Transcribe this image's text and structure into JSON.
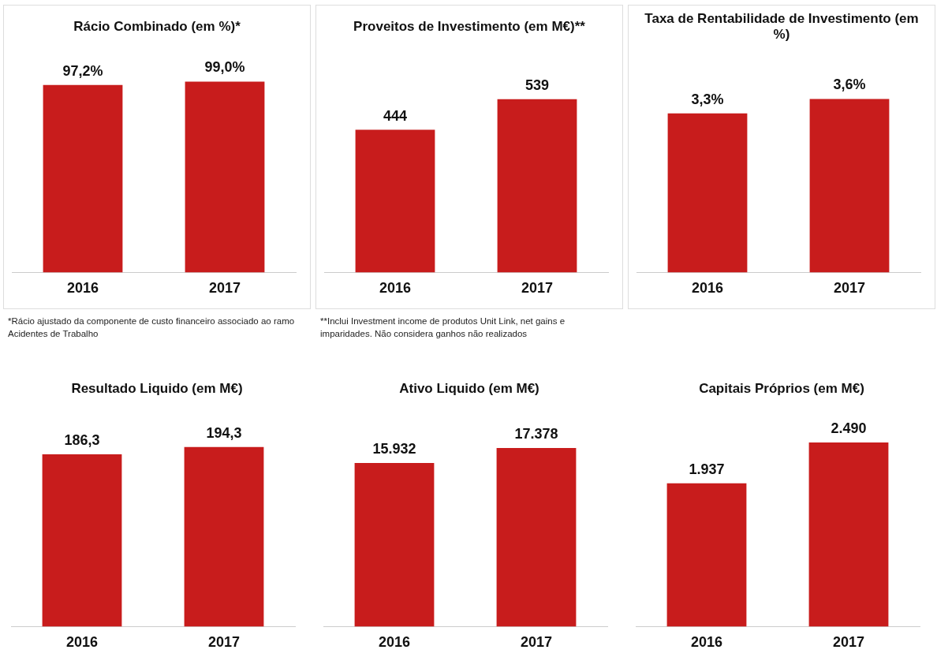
{
  "chart_data": [
    {
      "type": "bar",
      "title": "Rácio Combinado (em %)*",
      "categories": [
        "2016",
        "2017"
      ],
      "values": [
        97.2,
        99.0
      ],
      "value_labels": [
        "97,2%",
        "99,0%"
      ],
      "color": "#c81c1c",
      "grid": false,
      "legend": false,
      "tick_labels": "x",
      "annotations": [
        "*Rácio ajustado da componente de custo financeiro associado ao ramo Acidentes de Trabalho"
      ]
    },
    {
      "type": "bar",
      "title": "Proveitos de Investimento (em M€)**",
      "categories": [
        "2016",
        "2017"
      ],
      "values": [
        444,
        539
      ],
      "value_labels": [
        "444",
        "539"
      ],
      "color": "#c81c1c",
      "grid": false,
      "legend": false,
      "tick_labels": "x",
      "annotations": [
        "**Inclui Investment income de produtos Unit Link, net gains e imparidades. Não considera ganhos não realizados"
      ]
    },
    {
      "type": "bar",
      "title": "Taxa de Rentabilidade de Investimento (em %)",
      "categories": [
        "2016",
        "2017"
      ],
      "values": [
        3.3,
        3.6
      ],
      "value_labels": [
        "3,3%",
        "3,6%"
      ],
      "color": "#c81c1c",
      "grid": false,
      "legend": false,
      "tick_labels": "x"
    },
    {
      "type": "bar",
      "title": "Resultado Liquido (em M€)",
      "categories": [
        "2016",
        "2017"
      ],
      "values": [
        186.3,
        194.3
      ],
      "value_labels": [
        "186,3",
        "194,3"
      ],
      "color": "#c81c1c",
      "grid": false,
      "legend": false,
      "tick_labels": "x"
    },
    {
      "type": "bar",
      "title": "Ativo Liquido (em M€)",
      "categories": [
        "2016",
        "2017"
      ],
      "values": [
        15932,
        17378
      ],
      "value_labels": [
        "15.932",
        "17.378"
      ],
      "color": "#c81c1c",
      "grid": false,
      "legend": false,
      "tick_labels": "x"
    },
    {
      "type": "bar",
      "title": "Capitais Próprios (em M€)",
      "categories": [
        "2016",
        "2017"
      ],
      "values": [
        1937,
        2490
      ],
      "value_labels": [
        "1.937",
        "2.490"
      ],
      "color": "#c81c1c",
      "grid": false,
      "legend": false,
      "tick_labels": "x"
    }
  ]
}
